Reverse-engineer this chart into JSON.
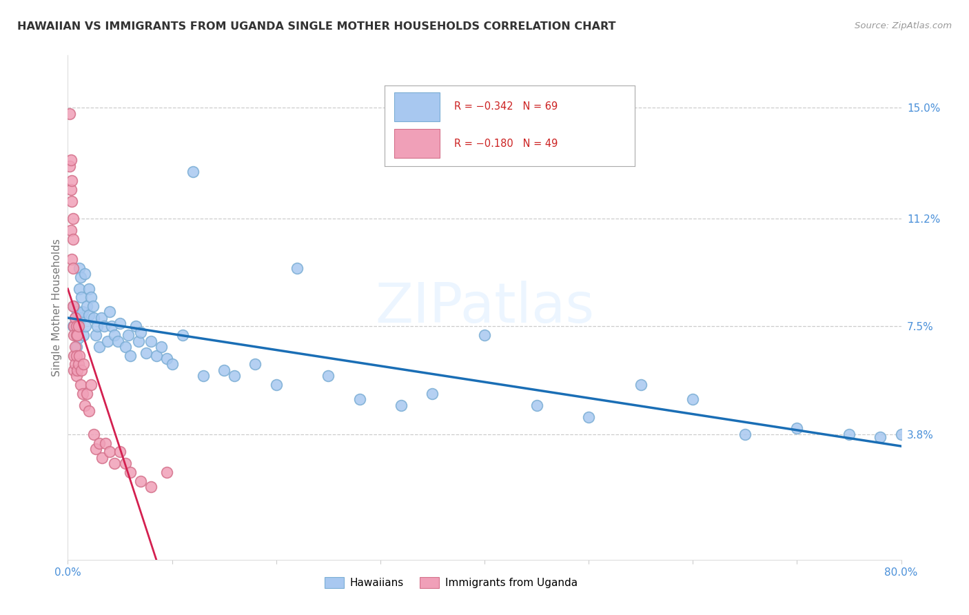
{
  "title": "HAWAIIAN VS IMMIGRANTS FROM UGANDA SINGLE MOTHER HOUSEHOLDS CORRELATION CHART",
  "source": "Source: ZipAtlas.com",
  "ylabel": "Single Mother Households",
  "ytick_labels": [
    "15.0%",
    "11.2%",
    "7.5%",
    "3.8%"
  ],
  "ytick_values": [
    0.15,
    0.112,
    0.075,
    0.038
  ],
  "xlim": [
    0.0,
    0.8
  ],
  "ylim": [
    -0.005,
    0.168
  ],
  "hawaiian_color": "#a8c8f0",
  "hawaii_edge_color": "#7aadd4",
  "uganda_color": "#f0a0b8",
  "uganda_edge_color": "#d4708a",
  "trendline_hawaiian_color": "#1a6eb5",
  "trendline_uganda_color": "#d42050",
  "trendline_ref_color": "#cccccc",
  "background_color": "#ffffff",
  "grid_color": "#cccccc",
  "watermark": "ZIPatlas",
  "axis_label_color": "#4a90d9",
  "title_color": "#333333",
  "source_color": "#999999",
  "ylabel_color": "#777777",
  "hawaiians_x": [
    0.005,
    0.006,
    0.007,
    0.008,
    0.008,
    0.009,
    0.009,
    0.01,
    0.01,
    0.011,
    0.011,
    0.012,
    0.013,
    0.013,
    0.014,
    0.015,
    0.016,
    0.017,
    0.018,
    0.02,
    0.02,
    0.022,
    0.024,
    0.025,
    0.027,
    0.028,
    0.03,
    0.032,
    0.035,
    0.038,
    0.04,
    0.042,
    0.045,
    0.048,
    0.05,
    0.055,
    0.058,
    0.06,
    0.065,
    0.068,
    0.07,
    0.075,
    0.08,
    0.085,
    0.09,
    0.095,
    0.1,
    0.11,
    0.12,
    0.13,
    0.15,
    0.16,
    0.18,
    0.2,
    0.22,
    0.25,
    0.28,
    0.32,
    0.35,
    0.4,
    0.45,
    0.5,
    0.55,
    0.6,
    0.65,
    0.7,
    0.75,
    0.78,
    0.8
  ],
  "hawaiians_y": [
    0.075,
    0.082,
    0.078,
    0.072,
    0.068,
    0.08,
    0.073,
    0.076,
    0.071,
    0.095,
    0.088,
    0.092,
    0.078,
    0.085,
    0.08,
    0.072,
    0.093,
    0.075,
    0.082,
    0.088,
    0.079,
    0.085,
    0.082,
    0.078,
    0.072,
    0.075,
    0.068,
    0.078,
    0.075,
    0.07,
    0.08,
    0.075,
    0.072,
    0.07,
    0.076,
    0.068,
    0.072,
    0.065,
    0.075,
    0.07,
    0.073,
    0.066,
    0.07,
    0.065,
    0.068,
    0.064,
    0.062,
    0.072,
    0.128,
    0.058,
    0.06,
    0.058,
    0.062,
    0.055,
    0.095,
    0.058,
    0.05,
    0.048,
    0.052,
    0.072,
    0.048,
    0.044,
    0.055,
    0.05,
    0.038,
    0.04,
    0.038,
    0.037,
    0.038
  ],
  "uganda_x": [
    0.002,
    0.002,
    0.003,
    0.003,
    0.003,
    0.004,
    0.004,
    0.004,
    0.005,
    0.005,
    0.005,
    0.005,
    0.006,
    0.006,
    0.006,
    0.006,
    0.007,
    0.007,
    0.007,
    0.008,
    0.008,
    0.008,
    0.008,
    0.009,
    0.009,
    0.01,
    0.01,
    0.011,
    0.012,
    0.013,
    0.014,
    0.015,
    0.016,
    0.018,
    0.02,
    0.022,
    0.025,
    0.027,
    0.03,
    0.033,
    0.036,
    0.04,
    0.045,
    0.05,
    0.055,
    0.06,
    0.07,
    0.08,
    0.095
  ],
  "uganda_y": [
    0.148,
    0.13,
    0.132,
    0.122,
    0.108,
    0.125,
    0.118,
    0.098,
    0.112,
    0.105,
    0.095,
    0.082,
    0.075,
    0.072,
    0.065,
    0.06,
    0.078,
    0.068,
    0.062,
    0.075,
    0.072,
    0.065,
    0.058,
    0.072,
    0.06,
    0.075,
    0.062,
    0.065,
    0.055,
    0.06,
    0.052,
    0.062,
    0.048,
    0.052,
    0.046,
    0.055,
    0.038,
    0.033,
    0.035,
    0.03,
    0.035,
    0.032,
    0.028,
    0.032,
    0.028,
    0.025,
    0.022,
    0.02,
    0.025
  ]
}
